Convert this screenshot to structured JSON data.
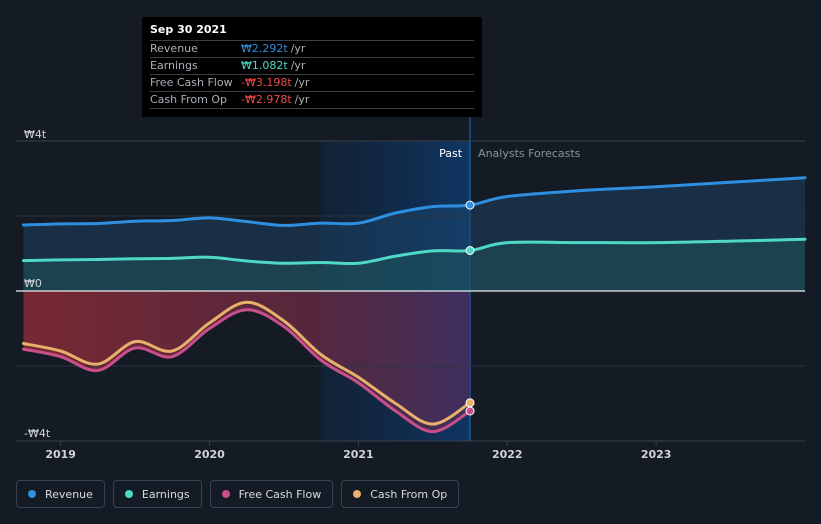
{
  "tooltip": {
    "date": "Sep 30 2021",
    "rows": [
      {
        "label": "Revenue",
        "value": "₩2.292t",
        "unit": "/yr",
        "color": "#2e8fe0"
      },
      {
        "label": "Earnings",
        "value": "₩1.082t",
        "unit": "/yr",
        "color": "#4fd8c6"
      },
      {
        "label": "Free Cash Flow",
        "value": "-₩3.198t",
        "unit": "/yr",
        "color": "#ef4b4b"
      },
      {
        "label": "Cash From Op",
        "value": "-₩2.978t",
        "unit": "/yr",
        "color": "#ef4b4b"
      }
    ]
  },
  "section_labels": {
    "past": "Past",
    "forecast": "Analysts Forecasts"
  },
  "legend": [
    {
      "label": "Revenue",
      "color": "#2e8fe0"
    },
    {
      "label": "Earnings",
      "color": "#4fd8c6"
    },
    {
      "label": "Free Cash Flow",
      "color": "#c94f8a"
    },
    {
      "label": "Cash From Op",
      "color": "#e8b06a"
    }
  ],
  "chart_data": {
    "type": "line",
    "xlim": [
      2018.7,
      2024.0
    ],
    "ylim": [
      -4,
      4
    ],
    "y_ticks": [
      {
        "value": 4,
        "label": "₩4t"
      },
      {
        "value": 0,
        "label": "₩0"
      },
      {
        "value": -4,
        "label": "-₩4t"
      }
    ],
    "x_ticks": [
      {
        "value": 2019,
        "label": "2019"
      },
      {
        "value": 2020,
        "label": "2020"
      },
      {
        "value": 2021,
        "label": "2021"
      },
      {
        "value": 2022,
        "label": "2022"
      },
      {
        "value": 2023,
        "label": "2023"
      }
    ],
    "past_end": 2021.75,
    "highlight_start": 2020.75,
    "series": [
      {
        "name": "Revenue",
        "color": "#2e8fe0",
        "points": [
          [
            2018.75,
            1.76
          ],
          [
            2019.0,
            1.79
          ],
          [
            2019.25,
            1.8
          ],
          [
            2019.5,
            1.86
          ],
          [
            2019.75,
            1.88
          ],
          [
            2020.0,
            1.95
          ],
          [
            2020.25,
            1.85
          ],
          [
            2020.5,
            1.75
          ],
          [
            2020.75,
            1.81
          ],
          [
            2021.0,
            1.81
          ],
          [
            2021.25,
            2.08
          ],
          [
            2021.5,
            2.25
          ],
          [
            2021.75,
            2.29
          ]
        ],
        "forecast": [
          [
            2021.75,
            2.29
          ],
          [
            2022.0,
            2.52
          ],
          [
            2022.5,
            2.68
          ],
          [
            2023.0,
            2.78
          ],
          [
            2023.5,
            2.9
          ],
          [
            2024.0,
            3.02
          ]
        ]
      },
      {
        "name": "Earnings",
        "color": "#4fd8c6",
        "points": [
          [
            2018.75,
            0.81
          ],
          [
            2019.0,
            0.83
          ],
          [
            2019.25,
            0.84
          ],
          [
            2019.5,
            0.86
          ],
          [
            2019.75,
            0.87
          ],
          [
            2020.0,
            0.9
          ],
          [
            2020.25,
            0.8
          ],
          [
            2020.5,
            0.74
          ],
          [
            2020.75,
            0.76
          ],
          [
            2021.0,
            0.74
          ],
          [
            2021.25,
            0.93
          ],
          [
            2021.5,
            1.07
          ],
          [
            2021.75,
            1.08
          ]
        ],
        "forecast": [
          [
            2021.75,
            1.08
          ],
          [
            2022.0,
            1.29
          ],
          [
            2022.5,
            1.29
          ],
          [
            2023.0,
            1.29
          ],
          [
            2023.5,
            1.33
          ],
          [
            2024.0,
            1.38
          ]
        ]
      },
      {
        "name": "Free Cash Flow",
        "color": "#c94f8a",
        "points": [
          [
            2018.75,
            -1.55
          ],
          [
            2019.0,
            -1.75
          ],
          [
            2019.25,
            -2.12
          ],
          [
            2019.5,
            -1.52
          ],
          [
            2019.75,
            -1.75
          ],
          [
            2020.0,
            -1.0
          ],
          [
            2020.25,
            -0.5
          ],
          [
            2020.5,
            -0.95
          ],
          [
            2020.75,
            -1.85
          ],
          [
            2021.0,
            -2.45
          ],
          [
            2021.25,
            -3.2
          ],
          [
            2021.5,
            -3.75
          ],
          [
            2021.75,
            -3.2
          ]
        ]
      },
      {
        "name": "Cash From Op",
        "color": "#e8b06a",
        "points": [
          [
            2018.75,
            -1.4
          ],
          [
            2019.0,
            -1.6
          ],
          [
            2019.25,
            -1.95
          ],
          [
            2019.5,
            -1.35
          ],
          [
            2019.75,
            -1.6
          ],
          [
            2020.0,
            -0.85
          ],
          [
            2020.25,
            -0.3
          ],
          [
            2020.5,
            -0.8
          ],
          [
            2020.75,
            -1.7
          ],
          [
            2021.0,
            -2.3
          ],
          [
            2021.25,
            -3.0
          ],
          [
            2021.5,
            -3.55
          ],
          [
            2021.75,
            -2.98
          ]
        ]
      }
    ]
  }
}
